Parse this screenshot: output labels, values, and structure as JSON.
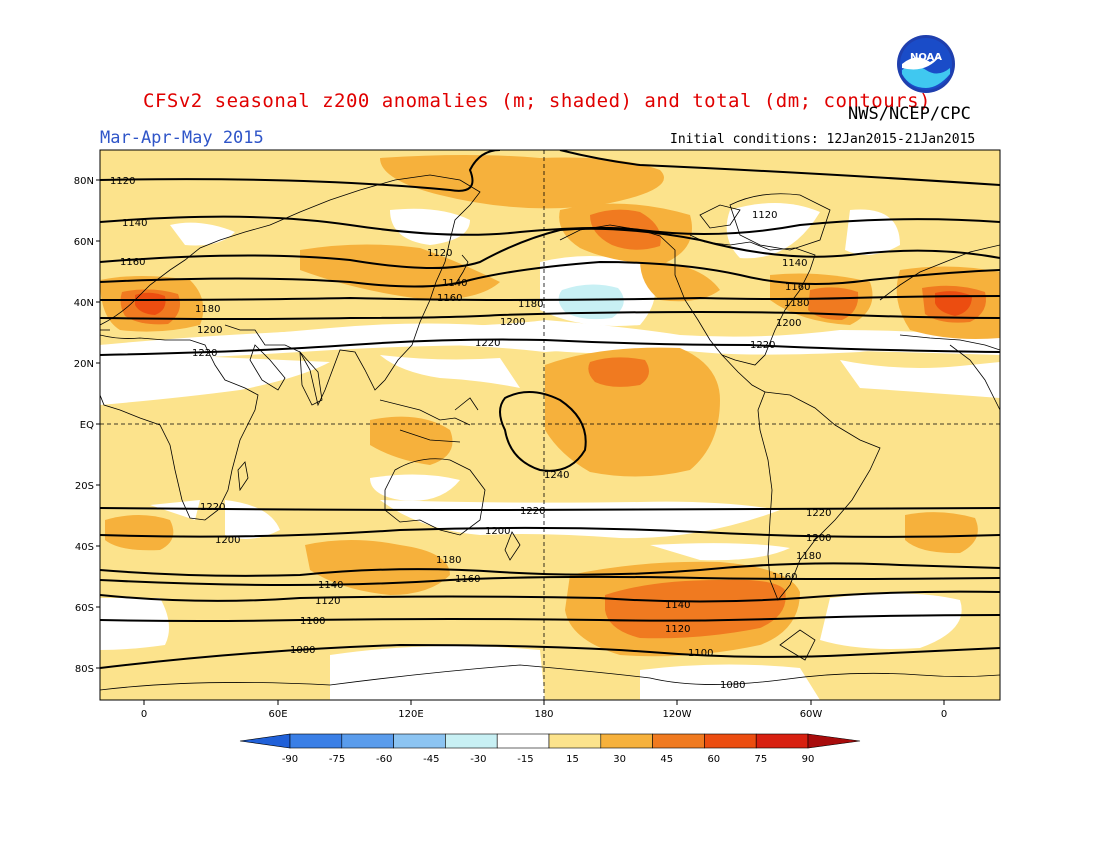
{
  "header": {
    "title": "CFSv2 seasonal z200 anomalies (m; shaded) and total (dm; contours)",
    "agency": "NWS/NCEP/CPC",
    "period": "Mar-Apr-May 2015",
    "initial_conditions": "Initial conditions: 12Jan2015-21Jan2015",
    "logo_text": "NOAA"
  },
  "axes": {
    "lat_labels": [
      "80N",
      "60N",
      "40N",
      "20N",
      "EQ",
      "20S",
      "40S",
      "60S",
      "80S"
    ],
    "lon_labels": [
      "0",
      "60E",
      "120E",
      "180",
      "120W",
      "60W",
      "0"
    ]
  },
  "colorbar": {
    "labels": [
      "-90",
      "-75",
      "-60",
      "-45",
      "-30",
      "-15",
      "15",
      "30",
      "45",
      "60",
      "75",
      "90"
    ],
    "colors": [
      "#2060d8",
      "#3a7fe6",
      "#5a9cec",
      "#8cc4f2",
      "#c8f0f4",
      "#ffffff",
      "#fce38c",
      "#f6b13c",
      "#f07a20",
      "#ec4d10",
      "#d82010",
      "#a80c0c"
    ]
  },
  "contours": {
    "labels": [
      "1080",
      "1100",
      "1120",
      "1140",
      "1160",
      "1180",
      "1200",
      "1220",
      "1240"
    ]
  },
  "colors": {
    "background_anomaly": "#fce38c",
    "title_red": "#e00000",
    "period_blue": "#2f55c8"
  }
}
